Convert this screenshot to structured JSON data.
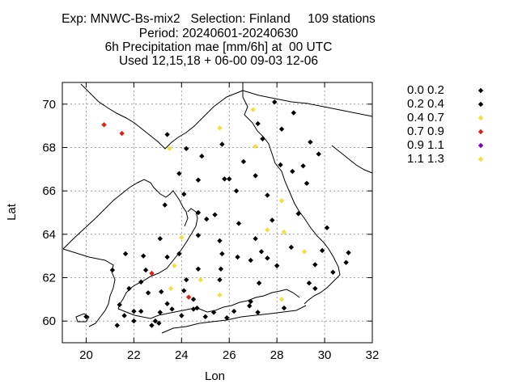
{
  "title": {
    "line1": "Exp: MNWC-Bs-mix2   Selection: Finland     109 stations",
    "line2": "Period: 20240601-20240630",
    "line3": "6h Precipitation mae [mm/6h] at  00 UTC",
    "line4": "Used 12,15,18 + 06-00 09-03 12-06"
  },
  "axes": {
    "xlabel": "Lon",
    "ylabel": "Lat",
    "xlim": [
      19,
      32
    ],
    "ylim": [
      59,
      71
    ],
    "xticks": [
      20,
      22,
      24,
      26,
      28,
      30,
      32
    ],
    "yticks": [
      60,
      62,
      64,
      66,
      68,
      70
    ],
    "grid": true
  },
  "legend": {
    "placement": "right",
    "entries": [
      {
        "label": "0.0 0.2",
        "color": "#000000"
      },
      {
        "label": "0.2 0.4",
        "color": "#000000"
      },
      {
        "label": "0.4 0.7",
        "color": "#f0e040"
      },
      {
        "label": "0.7 0.9",
        "color": "#e02010"
      },
      {
        "label": "0.9 1.1",
        "color": "#8000c0"
      },
      {
        "label": "1.1 1.3",
        "color": "#f0e040"
      }
    ]
  },
  "chart_data": {
    "type": "scatter",
    "x_name": "Lon",
    "y_name": "Lat",
    "colors": {
      "k": "#000000",
      "y": "#f0e040",
      "r": "#e02010"
    },
    "points": [
      [
        27.9,
        70.1,
        "k"
      ],
      [
        27.0,
        69.75,
        "y"
      ],
      [
        28.7,
        69.6,
        "k"
      ],
      [
        20.75,
        69.05,
        "r"
      ],
      [
        21.5,
        68.65,
        "r"
      ],
      [
        23.4,
        68.6,
        "k"
      ],
      [
        25.6,
        68.9,
        "y"
      ],
      [
        27.2,
        69.1,
        "k"
      ],
      [
        28.2,
        68.85,
        "k"
      ],
      [
        23.5,
        67.95,
        "y"
      ],
      [
        24.2,
        67.95,
        "k"
      ],
      [
        25.7,
        68.15,
        "k"
      ],
      [
        27.4,
        68.4,
        "k"
      ],
      [
        27.1,
        68.05,
        "y"
      ],
      [
        29.4,
        68.25,
        "k"
      ],
      [
        24.85,
        67.6,
        "k"
      ],
      [
        28.15,
        67.2,
        "k"
      ],
      [
        29.75,
        67.7,
        "k"
      ],
      [
        29.1,
        67.15,
        "k"
      ],
      [
        23.9,
        66.8,
        "k"
      ],
      [
        26.6,
        67.35,
        "k"
      ],
      [
        27.1,
        66.7,
        "k"
      ],
      [
        28.65,
        66.9,
        "k"
      ],
      [
        29.25,
        66.35,
        "k"
      ],
      [
        24.7,
        66.5,
        "k"
      ],
      [
        25.8,
        66.55,
        "k"
      ],
      [
        26.0,
        66.55,
        "k"
      ],
      [
        26.3,
        66.0,
        "k"
      ],
      [
        24.1,
        65.85,
        "k"
      ],
      [
        27.6,
        65.8,
        "k"
      ],
      [
        28.2,
        65.55,
        "y"
      ],
      [
        23.3,
        65.35,
        "k"
      ],
      [
        24.7,
        65.0,
        "k"
      ],
      [
        25.05,
        64.7,
        "k"
      ],
      [
        25.4,
        64.9,
        "k"
      ],
      [
        26.4,
        64.5,
        "k"
      ],
      [
        27.8,
        64.65,
        "k"
      ],
      [
        28.9,
        64.95,
        "k"
      ],
      [
        30.1,
        64.3,
        "k"
      ],
      [
        24.0,
        63.85,
        "y"
      ],
      [
        23.1,
        63.8,
        "k"
      ],
      [
        24.7,
        63.95,
        "k"
      ],
      [
        25.6,
        63.7,
        "k"
      ],
      [
        27.1,
        63.8,
        "k"
      ],
      [
        27.6,
        64.2,
        "y"
      ],
      [
        28.3,
        64.1,
        "y"
      ],
      [
        28.6,
        63.4,
        "k"
      ],
      [
        29.15,
        63.2,
        "y"
      ],
      [
        29.9,
        63.25,
        "k"
      ],
      [
        31.0,
        63.15,
        "k"
      ],
      [
        22.4,
        63.0,
        "k"
      ],
      [
        23.9,
        63.1,
        "k"
      ],
      [
        25.7,
        63.1,
        "k"
      ],
      [
        26.35,
        62.95,
        "k"
      ],
      [
        27.35,
        63.2,
        "k"
      ],
      [
        27.6,
        62.9,
        "k"
      ],
      [
        23.4,
        62.95,
        "k"
      ],
      [
        21.65,
        63.1,
        "k"
      ],
      [
        23.7,
        62.55,
        "y"
      ],
      [
        22.5,
        62.35,
        "k"
      ],
      [
        24.7,
        62.4,
        "k"
      ],
      [
        25.65,
        62.4,
        "k"
      ],
      [
        26.9,
        62.8,
        "k"
      ],
      [
        28.0,
        62.55,
        "k"
      ],
      [
        29.6,
        62.6,
        "k"
      ],
      [
        30.9,
        62.7,
        "k"
      ],
      [
        21.1,
        62.35,
        "k"
      ],
      [
        22.75,
        62.2,
        "r"
      ],
      [
        24.2,
        61.9,
        "k"
      ],
      [
        24.8,
        61.9,
        "y"
      ],
      [
        25.6,
        61.9,
        "k"
      ],
      [
        27.25,
        61.75,
        "k"
      ],
      [
        29.35,
        61.75,
        "k"
      ],
      [
        30.35,
        62.25,
        "k"
      ],
      [
        21.8,
        61.5,
        "k"
      ],
      [
        22.3,
        61.8,
        "k"
      ],
      [
        23.15,
        61.35,
        "k"
      ],
      [
        23.55,
        61.5,
        "y"
      ],
      [
        24.1,
        61.4,
        "k"
      ],
      [
        25.6,
        61.2,
        "y"
      ],
      [
        29.6,
        61.5,
        "k"
      ],
      [
        22.6,
        61.3,
        "k"
      ],
      [
        24.3,
        61.1,
        "r"
      ],
      [
        24.5,
        61.0,
        "k"
      ],
      [
        26.9,
        60.9,
        "k"
      ],
      [
        28.2,
        61.0,
        "y"
      ],
      [
        21.4,
        60.75,
        "k"
      ],
      [
        22.0,
        60.45,
        "k"
      ],
      [
        22.3,
        60.45,
        "k"
      ],
      [
        23.1,
        60.4,
        "k"
      ],
      [
        23.4,
        60.8,
        "k"
      ],
      [
        23.6,
        60.55,
        "k"
      ],
      [
        24.5,
        60.55,
        "k"
      ],
      [
        24.65,
        60.6,
        "k"
      ],
      [
        25.35,
        60.4,
        "k"
      ],
      [
        26.2,
        60.45,
        "k"
      ],
      [
        26.85,
        60.7,
        "k"
      ],
      [
        27.2,
        60.4,
        "k"
      ],
      [
        28.3,
        60.6,
        "k"
      ],
      [
        20.0,
        60.2,
        "k"
      ],
      [
        21.3,
        59.8,
        "k"
      ],
      [
        22.0,
        60.0,
        "k"
      ],
      [
        22.75,
        59.8,
        "k"
      ],
      [
        23.05,
        59.9,
        "k"
      ],
      [
        25.0,
        60.2,
        "k"
      ],
      [
        25.9,
        60.15,
        "k"
      ],
      [
        22.9,
        60.0,
        "k"
      ],
      [
        24.0,
        60.25,
        "k"
      ],
      [
        21.6,
        60.25,
        "k"
      ]
    ]
  }
}
